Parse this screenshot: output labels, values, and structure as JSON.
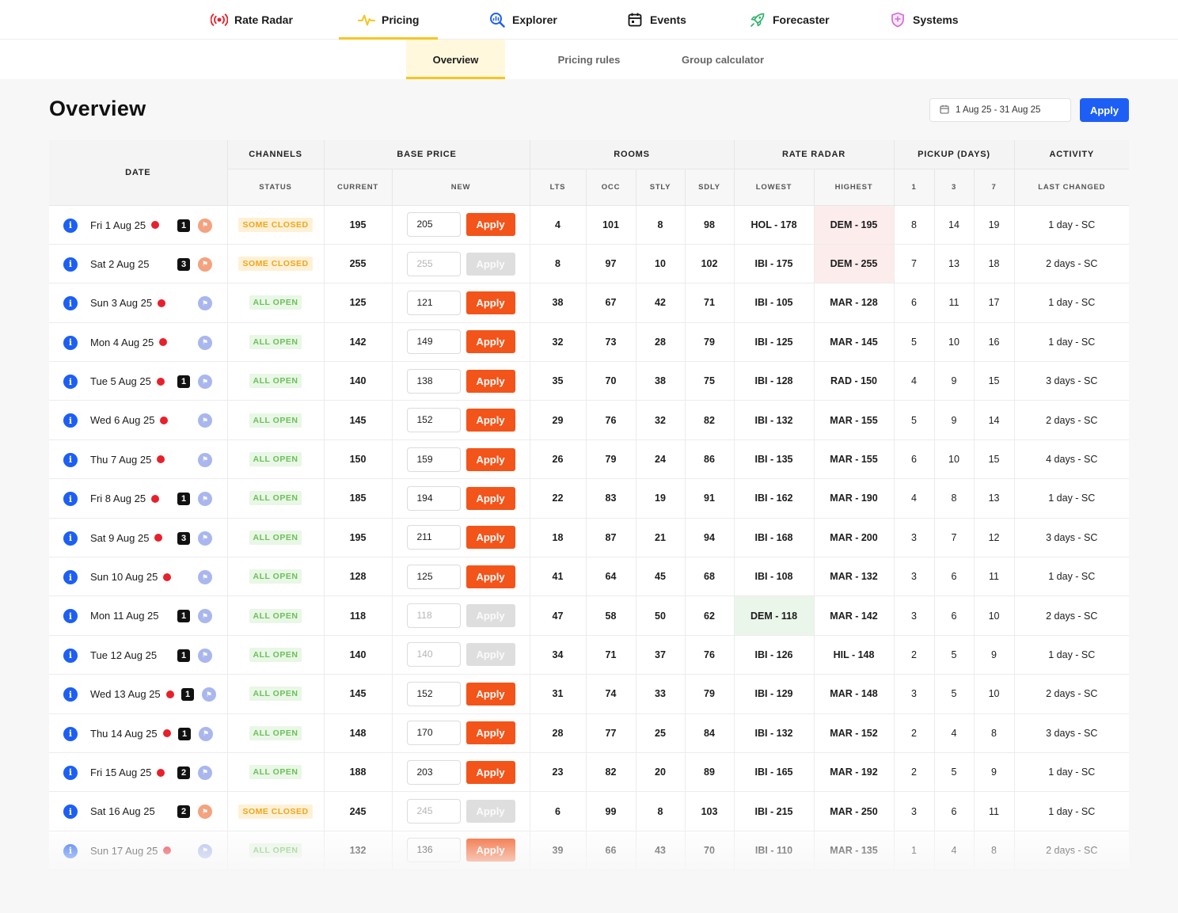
{
  "nav": {
    "items": [
      {
        "label": "Rate Radar",
        "icon": "radar-broadcast-icon",
        "color": "#e8202b"
      },
      {
        "label": "Pricing",
        "icon": "pulse-icon",
        "color": "#f6c522",
        "active": true
      },
      {
        "label": "Explorer",
        "icon": "search-chart-icon",
        "color": "#1d5ff5"
      },
      {
        "label": "Events",
        "icon": "calendar-icon",
        "color": "#111111"
      },
      {
        "label": "Forecaster",
        "icon": "rocket-icon",
        "color": "#2db36a"
      },
      {
        "label": "Systems",
        "icon": "shield-icon",
        "color": "#d46ad8"
      }
    ]
  },
  "subnav": {
    "items": [
      {
        "label": "Overview",
        "active": true
      },
      {
        "label": "Pricing rules"
      },
      {
        "label": "Group calculator"
      }
    ]
  },
  "page": {
    "title": "Overview",
    "date_range": "1 Aug 25 - 31 Aug 25",
    "apply_label": "Apply"
  },
  "table": {
    "group_headers": {
      "date": "DATE",
      "channels": "CHANNELS",
      "base_price": "BASE PRICE",
      "rooms": "ROOMS",
      "rate_radar": "RATE RADAR",
      "pickup": "PICKUP (DAYS)",
      "activity": "ACTIVITY"
    },
    "sub_headers": {
      "status": "STATUS",
      "current": "CURRENT",
      "new": "NEW",
      "lts": "LTS",
      "occ": "OCC",
      "stly": "STLY",
      "sdly": "SDLY",
      "lowest": "LOWEST",
      "highest": "HIGHEST",
      "p1": "1",
      "p3": "3",
      "p7": "7",
      "last_changed": "LAST CHANGED"
    },
    "apply_label": "Apply",
    "colors": {
      "apply": "#f3541a",
      "info": "#1d5ff5",
      "open": "#6cc05a",
      "closed": "#f0a51c"
    },
    "rows": [
      {
        "date": "Fri 1 Aug 25",
        "dot": true,
        "badge": "1",
        "flag": "orange",
        "status": "SOME CLOSED",
        "current": "195",
        "new": "205",
        "enabled": true,
        "lts": "4",
        "occ": "101",
        "stly": "8",
        "sdly": "98",
        "lowest": "HOL - 178",
        "highest": "DEM - 195",
        "hl": "highest",
        "p1": "8",
        "p3": "14",
        "p7": "19",
        "changed": "1 day - SC"
      },
      {
        "date": "Sat 2 Aug 25",
        "dot": false,
        "badge": "3",
        "flag": "orange",
        "status": "SOME CLOSED",
        "current": "255",
        "new": "255",
        "enabled": false,
        "lts": "8",
        "occ": "97",
        "stly": "10",
        "sdly": "102",
        "lowest": "IBI - 175",
        "highest": "DEM - 255",
        "hl": "highest",
        "p1": "7",
        "p3": "13",
        "p7": "18",
        "changed": "2 days - SC"
      },
      {
        "date": "Sun 3 Aug 25",
        "dot": true,
        "badge": "",
        "flag": "blue",
        "status": "ALL OPEN",
        "current": "125",
        "new": "121",
        "enabled": true,
        "lts": "38",
        "occ": "67",
        "stly": "42",
        "sdly": "71",
        "lowest": "IBI - 105",
        "highest": "MAR - 128",
        "hl": "",
        "p1": "6",
        "p3": "11",
        "p7": "17",
        "changed": "1 day - SC"
      },
      {
        "date": "Mon 4 Aug 25",
        "dot": true,
        "badge": "",
        "flag": "blue",
        "status": "ALL OPEN",
        "current": "142",
        "new": "149",
        "enabled": true,
        "lts": "32",
        "occ": "73",
        "stly": "28",
        "sdly": "79",
        "lowest": "IBI - 125",
        "highest": "MAR - 145",
        "hl": "",
        "p1": "5",
        "p3": "10",
        "p7": "16",
        "changed": "1 day - SC"
      },
      {
        "date": "Tue 5 Aug 25",
        "dot": true,
        "badge": "1",
        "flag": "blue",
        "status": "ALL OPEN",
        "current": "140",
        "new": "138",
        "enabled": true,
        "lts": "35",
        "occ": "70",
        "stly": "38",
        "sdly": "75",
        "lowest": "IBI - 128",
        "highest": "RAD - 150",
        "hl": "",
        "p1": "4",
        "p3": "9",
        "p7": "15",
        "changed": "3 days - SC"
      },
      {
        "date": "Wed 6 Aug 25",
        "dot": true,
        "badge": "",
        "flag": "blue",
        "status": "ALL OPEN",
        "current": "145",
        "new": "152",
        "enabled": true,
        "lts": "29",
        "occ": "76",
        "stly": "32",
        "sdly": "82",
        "lowest": "IBI - 132",
        "highest": "MAR - 155",
        "hl": "",
        "p1": "5",
        "p3": "9",
        "p7": "14",
        "changed": "2 days - SC"
      },
      {
        "date": "Thu 7 Aug 25",
        "dot": true,
        "badge": "",
        "flag": "blue",
        "status": "ALL OPEN",
        "current": "150",
        "new": "159",
        "enabled": true,
        "lts": "26",
        "occ": "79",
        "stly": "24",
        "sdly": "86",
        "lowest": "IBI - 135",
        "highest": "MAR - 155",
        "hl": "",
        "p1": "6",
        "p3": "10",
        "p7": "15",
        "changed": "4 days - SC"
      },
      {
        "date": "Fri 8 Aug 25",
        "dot": true,
        "badge": "1",
        "flag": "blue",
        "status": "ALL OPEN",
        "current": "185",
        "new": "194",
        "enabled": true,
        "lts": "22",
        "occ": "83",
        "stly": "19",
        "sdly": "91",
        "lowest": "IBI - 162",
        "highest": "MAR - 190",
        "hl": "",
        "p1": "4",
        "p3": "8",
        "p7": "13",
        "changed": "1 day - SC"
      },
      {
        "date": "Sat 9 Aug 25",
        "dot": true,
        "badge": "3",
        "flag": "blue",
        "status": "ALL OPEN",
        "current": "195",
        "new": "211",
        "enabled": true,
        "lts": "18",
        "occ": "87",
        "stly": "21",
        "sdly": "94",
        "lowest": "IBI - 168",
        "highest": "MAR - 200",
        "hl": "",
        "p1": "3",
        "p3": "7",
        "p7": "12",
        "changed": "3 days - SC"
      },
      {
        "date": "Sun 10 Aug 25",
        "dot": true,
        "badge": "",
        "flag": "blue",
        "status": "ALL OPEN",
        "current": "128",
        "new": "125",
        "enabled": true,
        "lts": "41",
        "occ": "64",
        "stly": "45",
        "sdly": "68",
        "lowest": "IBI - 108",
        "highest": "MAR - 132",
        "hl": "",
        "p1": "3",
        "p3": "6",
        "p7": "11",
        "changed": "1 day - SC"
      },
      {
        "date": "Mon 11 Aug 25",
        "dot": false,
        "badge": "1",
        "flag": "blue",
        "status": "ALL OPEN",
        "current": "118",
        "new": "118",
        "enabled": false,
        "lts": "47",
        "occ": "58",
        "stly": "50",
        "sdly": "62",
        "lowest": "DEM - 118",
        "highest": "MAR - 142",
        "hl": "lowest",
        "p1": "3",
        "p3": "6",
        "p7": "10",
        "changed": "2 days - SC"
      },
      {
        "date": "Tue 12 Aug 25",
        "dot": false,
        "badge": "1",
        "flag": "blue",
        "status": "ALL OPEN",
        "current": "140",
        "new": "140",
        "enabled": false,
        "lts": "34",
        "occ": "71",
        "stly": "37",
        "sdly": "76",
        "lowest": "IBI - 126",
        "highest": "HIL - 148",
        "hl": "",
        "p1": "2",
        "p3": "5",
        "p7": "9",
        "changed": "1 day - SC"
      },
      {
        "date": "Wed 13 Aug 25",
        "dot": true,
        "badge": "1",
        "flag": "blue",
        "status": "ALL OPEN",
        "current": "145",
        "new": "152",
        "enabled": true,
        "lts": "31",
        "occ": "74",
        "stly": "33",
        "sdly": "79",
        "lowest": "IBI - 129",
        "highest": "MAR - 148",
        "hl": "",
        "p1": "3",
        "p3": "5",
        "p7": "10",
        "changed": "2 days - SC"
      },
      {
        "date": "Thu 14 Aug 25",
        "dot": true,
        "badge": "1",
        "flag": "blue",
        "status": "ALL OPEN",
        "current": "148",
        "new": "170",
        "enabled": true,
        "lts": "28",
        "occ": "77",
        "stly": "25",
        "sdly": "84",
        "lowest": "IBI - 132",
        "highest": "MAR - 152",
        "hl": "",
        "p1": "2",
        "p3": "4",
        "p7": "8",
        "changed": "3 days - SC"
      },
      {
        "date": "Fri 15 Aug 25",
        "dot": true,
        "badge": "2",
        "flag": "blue",
        "status": "ALL OPEN",
        "current": "188",
        "new": "203",
        "enabled": true,
        "lts": "23",
        "occ": "82",
        "stly": "20",
        "sdly": "89",
        "lowest": "IBI - 165",
        "highest": "MAR - 192",
        "hl": "",
        "p1": "2",
        "p3": "5",
        "p7": "9",
        "changed": "1 day - SC"
      },
      {
        "date": "Sat 16 Aug 25",
        "dot": false,
        "badge": "2",
        "flag": "orange",
        "status": "SOME CLOSED",
        "current": "245",
        "new": "245",
        "enabled": false,
        "lts": "6",
        "occ": "99",
        "stly": "8",
        "sdly": "103",
        "lowest": "IBI - 215",
        "highest": "MAR - 250",
        "hl": "",
        "p1": "3",
        "p3": "6",
        "p7": "11",
        "changed": "1 day - SC"
      },
      {
        "date": "Sun 17 Aug 25",
        "dot": true,
        "badge": "",
        "flag": "blue",
        "status": "ALL OPEN",
        "current": "132",
        "new": "136",
        "enabled": true,
        "lts": "39",
        "occ": "66",
        "stly": "43",
        "sdly": "70",
        "lowest": "IBI - 110",
        "highest": "MAR - 135",
        "hl": "",
        "p1": "1",
        "p3": "4",
        "p7": "8",
        "changed": "2 days - SC"
      }
    ]
  }
}
